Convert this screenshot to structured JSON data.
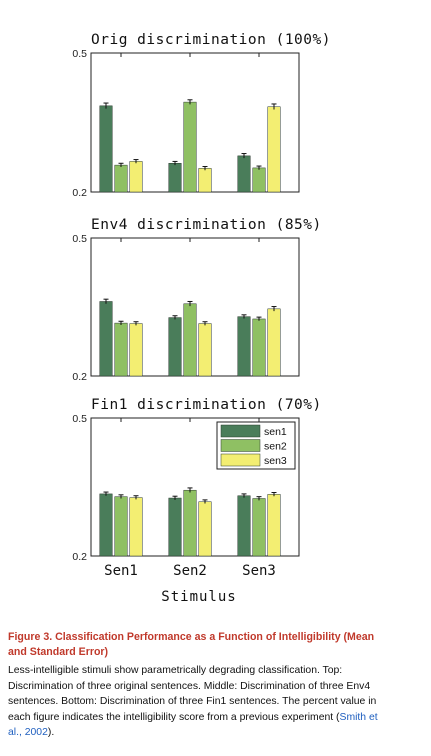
{
  "chart_data": [
    {
      "type": "bar",
      "title": "Orig discrimination (100%)",
      "categories": [
        "Sen1",
        "Sen2",
        "Sen3"
      ],
      "series": [
        {
          "name": "sen1",
          "values": [
            0.386,
            0.262,
            0.278
          ]
        },
        {
          "name": "sen2",
          "values": [
            0.258,
            0.394,
            0.252
          ]
        },
        {
          "name": "sen3",
          "values": [
            0.266,
            0.251,
            0.384
          ]
        }
      ],
      "errors": [
        {
          "name": "sen1",
          "values": [
            0.006,
            0.004,
            0.005
          ]
        },
        {
          "name": "sen2",
          "values": [
            0.004,
            0.005,
            0.004
          ]
        },
        {
          "name": "sen3",
          "values": [
            0.004,
            0.004,
            0.006
          ]
        }
      ],
      "ylim": [
        0.2,
        0.5
      ],
      "yticks": [
        "0.5",
        "0.2"
      ]
    },
    {
      "type": "bar",
      "title": "Env4 discrimination (85%)",
      "categories": [
        "Sen1",
        "Sen2",
        "Sen3"
      ],
      "series": [
        {
          "name": "sen1",
          "values": [
            0.362,
            0.327,
            0.329
          ]
        },
        {
          "name": "sen2",
          "values": [
            0.315,
            0.357,
            0.324
          ]
        },
        {
          "name": "sen3",
          "values": [
            0.314,
            0.314,
            0.346
          ]
        }
      ],
      "errors": [
        {
          "name": "sen1",
          "values": [
            0.005,
            0.004,
            0.004
          ]
        },
        {
          "name": "sen2",
          "values": [
            0.004,
            0.005,
            0.004
          ]
        },
        {
          "name": "sen3",
          "values": [
            0.004,
            0.004,
            0.005
          ]
        }
      ],
      "ylim": [
        0.2,
        0.5
      ],
      "yticks": [
        "0.5",
        "0.2"
      ]
    },
    {
      "type": "bar",
      "title": "Fin1 discrimination (70%)",
      "categories": [
        "Sen1",
        "Sen2",
        "Sen3"
      ],
      "series": [
        {
          "name": "sen1",
          "values": [
            0.335,
            0.326,
            0.331
          ]
        },
        {
          "name": "sen2",
          "values": [
            0.329,
            0.343,
            0.325
          ]
        },
        {
          "name": "sen3",
          "values": [
            0.327,
            0.318,
            0.334
          ]
        }
      ],
      "errors": [
        {
          "name": "sen1",
          "values": [
            0.004,
            0.004,
            0.004
          ]
        },
        {
          "name": "sen2",
          "values": [
            0.004,
            0.005,
            0.004
          ]
        },
        {
          "name": "sen3",
          "values": [
            0.004,
            0.004,
            0.004
          ]
        }
      ],
      "ylim": [
        0.2,
        0.5
      ],
      "yticks": [
        "0.5",
        "0.2"
      ],
      "legend": {
        "placement": "top-right",
        "entries": [
          "sen1",
          "sen2",
          "sen3"
        ]
      }
    }
  ],
  "xlabel": "Stimulus",
  "colors": {
    "sen1": "#4a7d5a",
    "sen2": "#8fc063",
    "sen3": "#f3ee72",
    "axis": "#222222"
  },
  "caption": {
    "title": "Figure 3. Classification Performance as a Function of Intelligibility (Mean and Standard Error)",
    "body": "Less-intelligible stimuli show parametrically degrading classification. Top: Discrimination of three original sentences. Middle: Discrimination of three Env4 sentences. Bottom: Discrimination of three Fin1 sentences. The percent value in each figure indicates the intelligibility score from a previous experiment (",
    "link": "Smith et al., 2002",
    "tail": ")."
  }
}
